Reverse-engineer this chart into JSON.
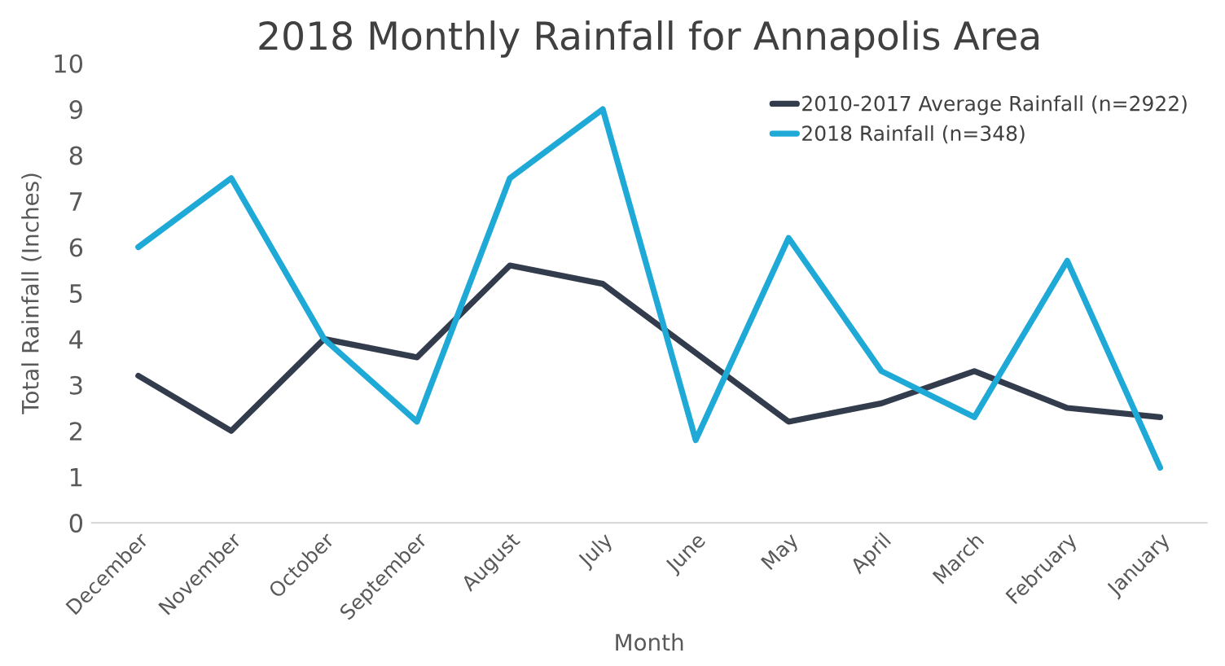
{
  "chart_data": {
    "type": "line",
    "title": "2018 Monthly Rainfall for Annapolis Area",
    "xlabel": "Month",
    "ylabel": "Total Rainfall (Inches)",
    "categories": [
      "December",
      "November",
      "October",
      "September",
      "August",
      "July",
      "June",
      "May",
      "April",
      "March",
      "February",
      "January"
    ],
    "series": [
      {
        "name": "2010-2017 Average Rainfall (n=2922)",
        "color": "#323c4c",
        "values": [
          3.2,
          2.0,
          4.0,
          3.6,
          5.6,
          5.2,
          3.7,
          2.2,
          2.6,
          3.3,
          2.5,
          2.3
        ]
      },
      {
        "name": "2018 Rainfall (n=348)",
        "color": "#1fa9d6",
        "values": [
          6.0,
          7.5,
          4.0,
          2.2,
          7.5,
          9.0,
          1.8,
          6.2,
          3.3,
          2.3,
          5.7,
          1.2
        ]
      }
    ],
    "ylim": [
      0,
      10
    ],
    "yticks": [
      0,
      1,
      2,
      3,
      4,
      5,
      6,
      7,
      8,
      9,
      10
    ],
    "grid": false,
    "legend": "top right",
    "marker": "none",
    "line_style": "solid"
  }
}
